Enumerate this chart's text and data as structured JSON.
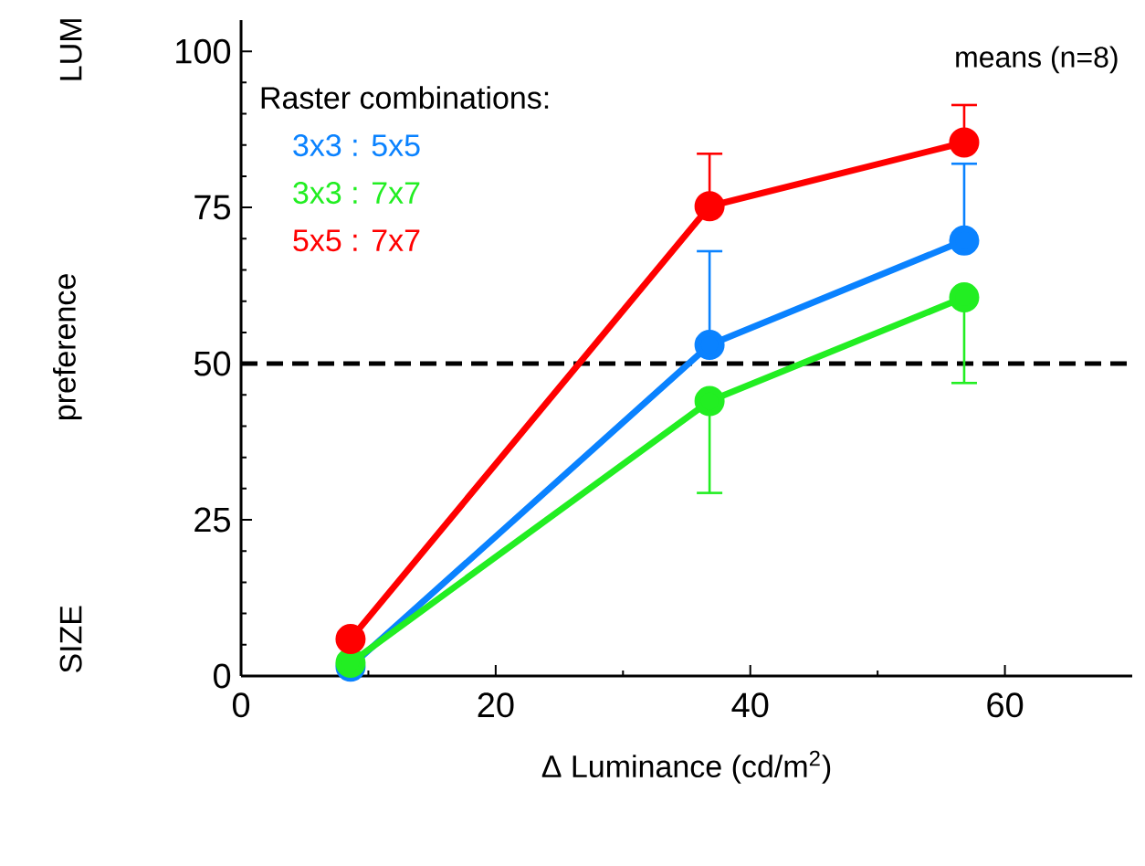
{
  "chart_data": {
    "type": "line",
    "xlabel": "Δ Luminance (cd/m$^{2}$)",
    "ylabel": "preference",
    "legend_title": "Raster combinations:",
    "annotations": [
      "means (n=8)",
      "SIZE",
      "LUM"
    ],
    "x": [
      8.6,
      36.8,
      56.8
    ],
    "xlim": [
      0,
      70
    ],
    "ylim": [
      0,
      105
    ],
    "xticks": [
      0,
      20,
      40,
      60
    ],
    "yticks": [
      0,
      25,
      50,
      75,
      100
    ],
    "series": [
      {
        "name": "3x3 : 5x5",
        "color": "#0a82ff",
        "values": [
          1.5,
          53,
          69.7
        ],
        "errors": [
          null,
          [
            53,
            68
          ],
          [
            69.7,
            82
          ]
        ]
      },
      {
        "name": "3x3 : 7x7",
        "color": "#22ee22",
        "values": [
          2.1,
          44,
          60.6
        ],
        "errors": [
          null,
          [
            29.3,
            44
          ],
          [
            46.9,
            60.6
          ]
        ]
      },
      {
        "name": "5x5 : 7x7",
        "color": "#ff0000",
        "values": [
          5.9,
          75.2,
          85.4
        ],
        "errors": [
          null,
          [
            75.2,
            83.6
          ],
          [
            85.4,
            91.4
          ]
        ]
      }
    ],
    "ref_lines": [
      {
        "axis": "y",
        "value": 50,
        "line_style": "dashed",
        "color": "#000000"
      }
    ],
    "legend": "top left",
    "marker": "circle",
    "line_style": "solid",
    "grid": false
  }
}
